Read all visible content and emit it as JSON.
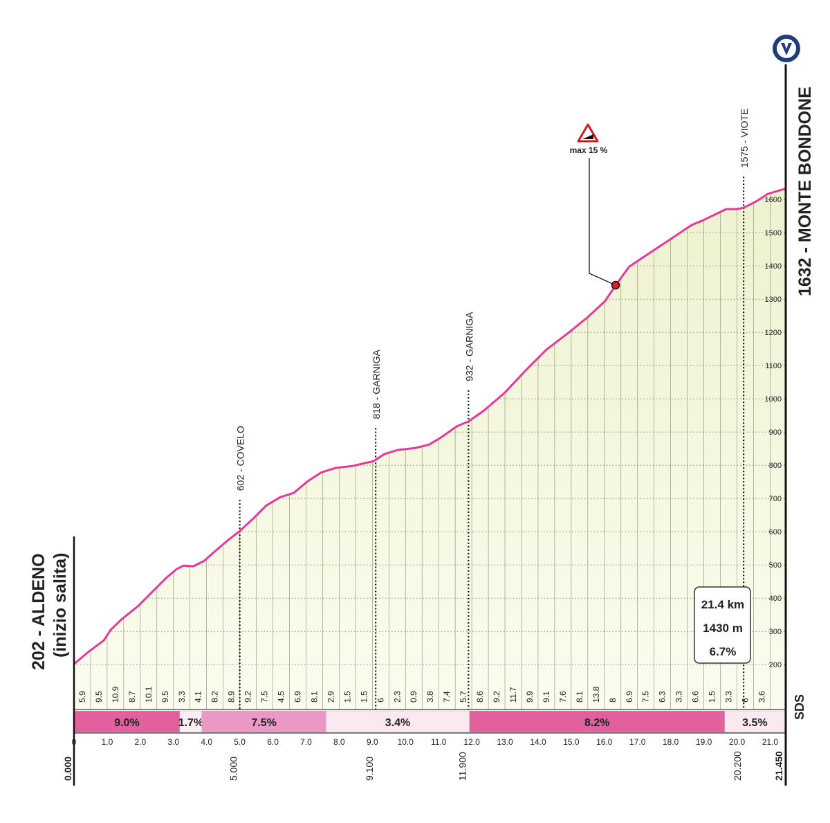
{
  "chart_data": {
    "type": "area",
    "color": "#e4399b",
    "x": [
      0,
      0.48,
      0.9,
      1.1,
      1.42,
      1.94,
      2.36,
      2.77,
      3.09,
      3.3,
      3.6,
      3.92,
      4.24,
      4.65,
      5.0,
      5.38,
      5.8,
      6.22,
      6.63,
      7.05,
      7.47,
      7.89,
      8.41,
      8.83,
      9.03,
      9.35,
      9.76,
      10.29,
      10.71,
      11.12,
      11.54,
      11.9,
      12.37,
      13.0,
      13.62,
      14.25,
      14.88,
      15.5,
      16.02,
      16.34,
      16.75,
      17.38,
      18.0,
      18.63,
      18.97,
      19.67,
      19.99,
      20.2,
      20.61,
      20.93,
      21.45
    ],
    "values": [
      202,
      242,
      273,
      304,
      335,
      377,
      419,
      460,
      487,
      498,
      496,
      512,
      540,
      575,
      602,
      637,
      679,
      704,
      717,
      752,
      779,
      792,
      798,
      808,
      812,
      833,
      846,
      852,
      862,
      887,
      917,
      932,
      965,
      1019,
      1085,
      1148,
      1196,
      1246,
      1294,
      1342,
      1398,
      1440,
      1481,
      1523,
      1537,
      1571,
      1571,
      1575,
      1596,
      1617,
      1632
    ],
    "xlim": [
      0,
      21.45
    ],
    "ylim": [
      65,
      1700
    ],
    "xticks": [
      0,
      {
        "value": 1,
        "label": "1.0"
      },
      {
        "value": 2,
        "label": "2.0"
      },
      {
        "value": 3,
        "label": "3.0"
      },
      {
        "value": 4,
        "label": "4.0"
      },
      {
        "value": 5,
        "label": "5.0"
      },
      {
        "value": 6,
        "label": "6.0"
      },
      {
        "value": 7,
        "label": "7.0"
      },
      {
        "value": 8,
        "label": "8.0"
      },
      {
        "value": 9,
        "label": "9.0"
      },
      {
        "value": 10,
        "label": "10.0"
      },
      {
        "value": 11,
        "label": "11.0"
      },
      {
        "value": 12,
        "label": "12.0"
      },
      {
        "value": 13,
        "label": "13.0"
      },
      {
        "value": 14,
        "label": "14.0"
      },
      {
        "value": 15,
        "label": "15.0"
      },
      {
        "value": 16,
        "label": "16.0"
      },
      {
        "value": 17,
        "label": "17.0"
      },
      {
        "value": 18,
        "label": "18.0"
      },
      {
        "value": 19,
        "label": "19.0"
      },
      {
        "value": 20,
        "label": "20.0"
      },
      {
        "value": 21,
        "label": "21.0"
      }
    ],
    "yticks": [
      200,
      300,
      400,
      500,
      600,
      700,
      800,
      900,
      1000,
      1100,
      1200,
      1300,
      1400,
      1500,
      1600
    ],
    "grid": true,
    "half_km_gradients": [
      5.9,
      9.5,
      10.9,
      8.7,
      10.1,
      9.5,
      3.3,
      4.1,
      8.2,
      8.9,
      9.2,
      7.5,
      4.5,
      6.9,
      8.1,
      2.9,
      1.5,
      1.5,
      6.0,
      2.3,
      0.9,
      3.8,
      7.4,
      5.7,
      8.6,
      9.2,
      11.7,
      9.9,
      9.1,
      7.6,
      8.1,
      13.8,
      8.0,
      6.9,
      7.5,
      6.3,
      3.3,
      6.6,
      1.5,
      3.3,
      6.0,
      3.6
    ],
    "sections": [
      {
        "start": 0,
        "end": 3.19,
        "gradient": 9.0,
        "label": "9.0%",
        "color": "#e3609f"
      },
      {
        "start": 3.19,
        "end": 3.86,
        "gradient": 1.7,
        "label": "1.7%",
        "color": "#fdeef4"
      },
      {
        "start": 3.86,
        "end": 7.6,
        "gradient": 7.5,
        "label": "7.5%",
        "color": "#ec98c4"
      },
      {
        "start": 7.6,
        "end": 11.93,
        "gradient": 3.4,
        "label": "3.4%",
        "color": "#fce8f0"
      },
      {
        "start": 11.93,
        "end": 19.63,
        "gradient": 8.2,
        "label": "8.2%",
        "color": "#e3609f"
      },
      {
        "start": 19.63,
        "end": 21.45,
        "gradient": 3.5,
        "label": "3.5%",
        "color": "#fce8f0"
      }
    ],
    "km_markers": [
      {
        "value": 0,
        "label": "0.000"
      },
      {
        "value": 5,
        "label": "5.000"
      },
      {
        "value": 9.1,
        "label": "9.100"
      },
      {
        "value": 11.9,
        "label": "11.900"
      },
      {
        "value": 20.2,
        "label": "20.200"
      },
      {
        "value": 21.45,
        "label": "21.450"
      }
    ],
    "waypoints": [
      {
        "km": 5.0,
        "elevation": 602,
        "label": "602 - COVELO"
      },
      {
        "km": 9.1,
        "elevation": 818,
        "label": "818 - GARNIGA"
      },
      {
        "km": 11.9,
        "elevation": 932,
        "label": "932 - GARNIGA"
      },
      {
        "km": 20.2,
        "elevation": 1575,
        "label": "1575 - VIOTE"
      }
    ],
    "start": {
      "label": "202 - ALDENO",
      "note": "(inizio salita)"
    },
    "finish": {
      "label": "1632 - MONTE BONDONE"
    },
    "max_gradient": {
      "km": 16.34,
      "label": "max 15 %"
    },
    "stats": [
      "21.4 km",
      "1430 m",
      "6.7%"
    ],
    "logo": "SDS"
  }
}
